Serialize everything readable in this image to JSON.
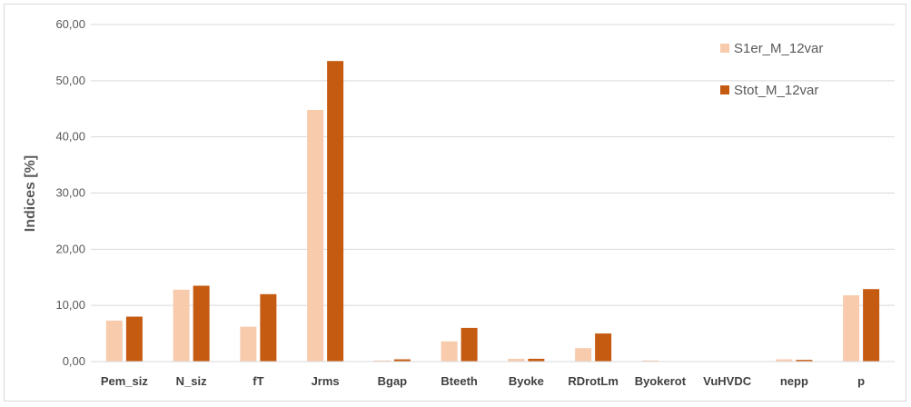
{
  "chart_data": {
    "type": "bar",
    "title": "",
    "xlabel": "",
    "ylabel": "Indices [%]",
    "ylim": [
      0,
      60
    ],
    "yticks": [
      "0,00",
      "10,00",
      "20,00",
      "30,00",
      "40,00",
      "50,00",
      "60,00"
    ],
    "ytick_values": [
      0,
      10,
      20,
      30,
      40,
      50,
      60
    ],
    "grid": true,
    "legend_position": "top-right",
    "categories": [
      "Pem_siz",
      "N_siz",
      "fT",
      "Jrms",
      "Bgap",
      "Bteeth",
      "Byoke",
      "RDrotLm",
      "Byokerot",
      "VuHVDC",
      "nepp",
      "p"
    ],
    "series": [
      {
        "name": "S1er_M_12var",
        "color": "#f8cbad",
        "values": [
          7.3,
          12.8,
          6.2,
          44.8,
          0.2,
          3.6,
          0.5,
          2.4,
          0.2,
          0.0,
          0.4,
          11.8
        ]
      },
      {
        "name": "Stot_M_12var",
        "color": "#c55a11",
        "values": [
          8.0,
          13.5,
          12.0,
          53.5,
          0.4,
          6.0,
          0.5,
          5.0,
          0.0,
          0.0,
          0.3,
          12.9
        ]
      }
    ]
  }
}
